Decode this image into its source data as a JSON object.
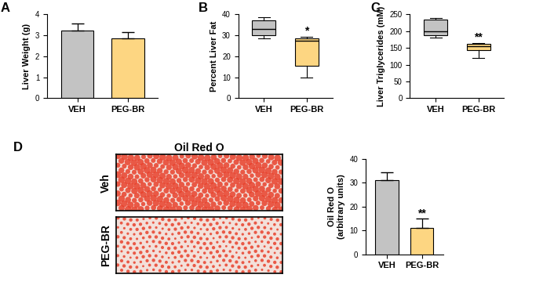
{
  "chart_data": [
    {
      "panel": "A",
      "type": "bar",
      "ylabel": "Liver Weight (g)",
      "categories": [
        "VEH",
        "PEG-BR"
      ],
      "values": [
        3.25,
        2.85
      ],
      "errors": [
        0.3,
        0.3
      ],
      "colors": [
        "#c3c3c3",
        "#fdd682"
      ],
      "ylim": [
        0,
        4
      ],
      "yticks": [
        0,
        1,
        2,
        3,
        4
      ]
    },
    {
      "panel": "B",
      "type": "box",
      "ylabel": "Percent Liver Fat",
      "categories": [
        "VEH",
        "PEG-BR"
      ],
      "boxes": [
        {
          "min": 28.5,
          "q1": 30,
          "median": 33,
          "q3": 37,
          "max": 38.5
        },
        {
          "min": 10,
          "q1": 15.5,
          "median": 27.5,
          "q3": 28.5,
          "max": 29.5
        }
      ],
      "colors": [
        "#c3c3c3",
        "#fdd682"
      ],
      "ylim": [
        0,
        40
      ],
      "yticks": [
        0,
        10,
        20,
        30,
        40
      ],
      "annotations": [
        {
          "category": "PEG-BR",
          "text": "*"
        }
      ]
    },
    {
      "panel": "C",
      "type": "box",
      "ylabel": "Liver Triglycerides (mM)",
      "categories": [
        "VEH",
        "PEG-BR"
      ],
      "boxes": [
        {
          "min": 180,
          "q1": 188,
          "median": 200,
          "q3": 235,
          "max": 240
        },
        {
          "min": 120,
          "q1": 143,
          "median": 155,
          "q3": 162,
          "max": 165
        }
      ],
      "colors": [
        "#c3c3c3",
        "#fdd682"
      ],
      "ylim": [
        0,
        250
      ],
      "yticks": [
        0,
        50,
        100,
        150,
        200,
        250
      ],
      "annotations": [
        {
          "category": "PEG-BR",
          "text": "**"
        }
      ]
    },
    {
      "panel": "D",
      "type": "image",
      "title": "Oil Red O",
      "row_labels": [
        "Veh",
        "PEG-BR"
      ]
    },
    {
      "type": "bar",
      "ylabel": "Oil Red O\n(arbitrary units)",
      "categories": [
        "VEH",
        "PEG-BR"
      ],
      "values": [
        31,
        11
      ],
      "errors": [
        3.5,
        4
      ],
      "colors": [
        "#c3c3c3",
        "#fdd682"
      ],
      "ylim": [
        0,
        40
      ],
      "yticks": [
        0,
        10,
        20,
        30,
        40
      ],
      "annotations": [
        {
          "category": "PEG-BR",
          "text": "**"
        }
      ]
    }
  ]
}
